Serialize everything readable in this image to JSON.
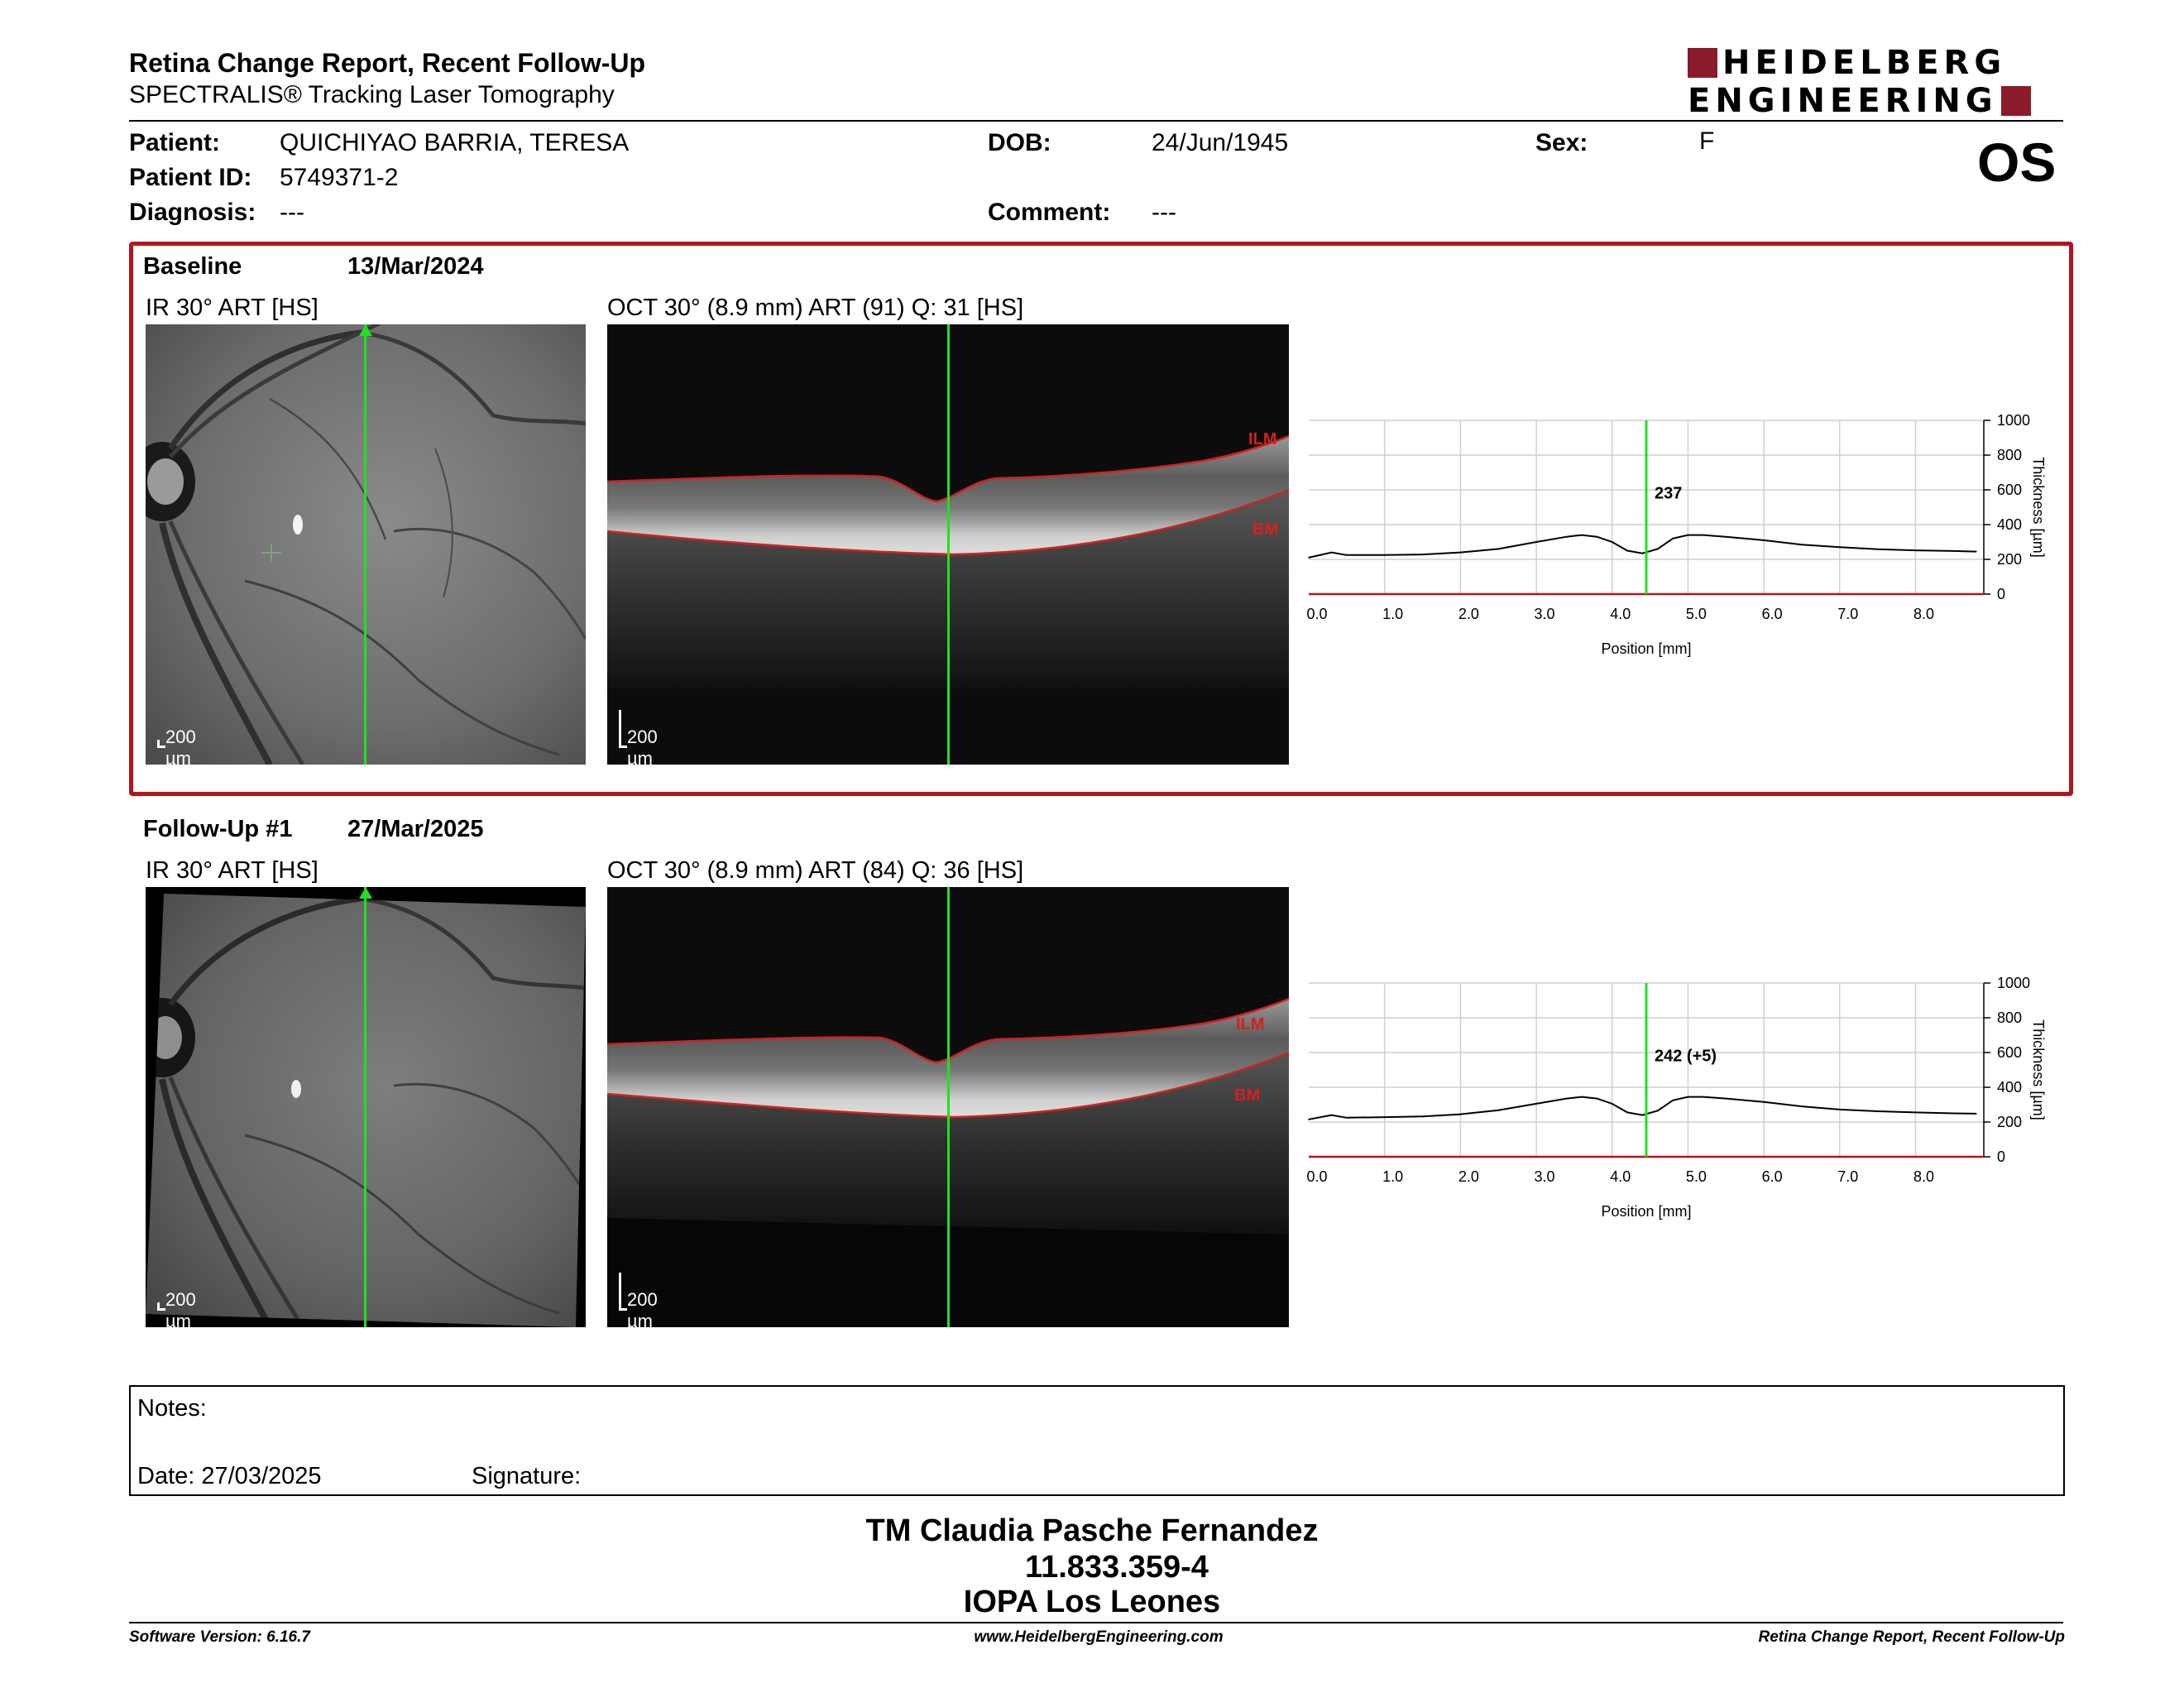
{
  "header": {
    "title": "Retina Change Report, Recent Follow-Up",
    "subtitle": "SPECTRALIS® Tracking Laser Tomography",
    "logo_line1": "HEIDELBERG",
    "logo_line2": "ENGINEERING",
    "logo_color": "#8b1a2b"
  },
  "patient": {
    "patient_label": "Patient:",
    "patient_value": "QUICHIYAO BARRIA, TERESA",
    "id_label": "Patient ID:",
    "id_value": "5749371-2",
    "diag_label": "Diagnosis:",
    "diag_value": "---",
    "dob_label": "DOB:",
    "dob_value": "24/Jun/1945",
    "comment_label": "Comment:",
    "comment_value": "---",
    "sex_label": "Sex:",
    "sex_value": "F",
    "eye": "OS"
  },
  "baseline": {
    "label": "Baseline",
    "date": "13/Mar/2024",
    "ir_title": "IR 30° ART [HS]",
    "oct_title": "OCT 30° (8.9 mm) ART (91) Q: 31 [HS]",
    "scale_ir": "200 µm",
    "scale_oct": "200 µm",
    "ilm": "ILM",
    "bm": "BM"
  },
  "followup": {
    "label": "Follow-Up #1",
    "date": "27/Mar/2025",
    "ir_title": "IR 30° ART [HS]",
    "oct_title": "OCT 30° (8.9 mm) ART (84) Q: 36 [HS]",
    "scale_ir": "200 µm",
    "scale_oct": "200 µm",
    "ilm": "ILM",
    "bm": "BM"
  },
  "chart_data": [
    {
      "type": "line",
      "xlabel": "Position [mm]",
      "ylabel": "Thickness [µm]",
      "xlim": [
        0,
        8.9
      ],
      "ylim": [
        0,
        1000
      ],
      "xticks": [
        "0.0",
        "1.0",
        "2.0",
        "3.0",
        "4.0",
        "5.0",
        "6.0",
        "7.0",
        "8.0"
      ],
      "yticks": [
        "0",
        "200",
        "400",
        "600",
        "800",
        "1000"
      ],
      "cursor_x": 4.45,
      "cursor_label": "237",
      "x": [
        0.0,
        0.3,
        0.5,
        1.0,
        1.5,
        2.0,
        2.5,
        3.0,
        3.4,
        3.6,
        3.8,
        4.0,
        4.2,
        4.4,
        4.6,
        4.8,
        5.0,
        5.2,
        5.5,
        6.0,
        6.5,
        7.0,
        7.5,
        8.0,
        8.5,
        8.8
      ],
      "y": [
        210,
        240,
        225,
        225,
        228,
        240,
        260,
        300,
        330,
        340,
        330,
        300,
        250,
        235,
        260,
        320,
        340,
        340,
        330,
        310,
        285,
        270,
        258,
        252,
        248,
        245
      ]
    },
    {
      "type": "line",
      "xlabel": "Position [mm]",
      "ylabel": "Thickness [µm]",
      "xlim": [
        0,
        8.9
      ],
      "ylim": [
        0,
        1000
      ],
      "xticks": [
        "0.0",
        "1.0",
        "2.0",
        "3.0",
        "4.0",
        "5.0",
        "6.0",
        "7.0",
        "8.0"
      ],
      "yticks": [
        "0",
        "200",
        "400",
        "600",
        "800",
        "1000"
      ],
      "cursor_x": 4.45,
      "cursor_label": "242 (+5)",
      "x": [
        0.0,
        0.3,
        0.5,
        1.0,
        1.5,
        2.0,
        2.5,
        3.0,
        3.4,
        3.6,
        3.8,
        4.0,
        4.2,
        4.4,
        4.6,
        4.8,
        5.0,
        5.2,
        5.5,
        6.0,
        6.5,
        7.0,
        7.5,
        8.0,
        8.5,
        8.8
      ],
      "y": [
        215,
        240,
        225,
        228,
        232,
        245,
        268,
        305,
        335,
        345,
        335,
        305,
        255,
        240,
        265,
        325,
        345,
        345,
        335,
        315,
        290,
        272,
        262,
        255,
        250,
        248
      ]
    }
  ],
  "notes": {
    "notes_label": "Notes:",
    "date_label": "Date: 27/03/2025",
    "signature_label": "Signature:"
  },
  "signoff": {
    "name": "TM Claudia Pasche Fernandez",
    "id": "11.833.359-4",
    "place": "IOPA Los Leones"
  },
  "footer": {
    "software": "Software Version: 6.16.7",
    "url": "www.HeidelbergEngineering.com",
    "report": "Retina Change Report, Recent Follow-Up"
  }
}
